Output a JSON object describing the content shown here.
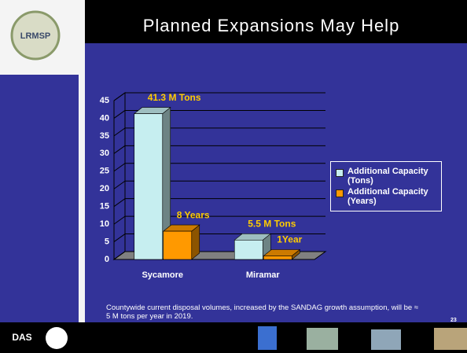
{
  "chart_data": {
    "type": "bar3d",
    "title": "Planned Expansions May Help",
    "categories": [
      "Sycamore",
      "Miramar"
    ],
    "series": [
      {
        "name": "Additional Capacity (Tons)",
        "color": "#c6eef0",
        "values": [
          41.3,
          5.5
        ],
        "value_labels": [
          "41.3 M Tons",
          "5.5 M Tons"
        ]
      },
      {
        "name": "Additional Capacity (Years)",
        "color": "#ff9900",
        "values": [
          8,
          1
        ],
        "value_labels": [
          "8 Years",
          "1Year"
        ]
      }
    ],
    "ylim": [
      0,
      45
    ],
    "yticks": [
      0,
      5,
      10,
      15,
      20,
      25,
      30,
      35,
      40,
      45
    ],
    "grid": true
  },
  "slide": {
    "logo_text": "LRMSP",
    "footer_logo_text": "DAS",
    "footnote": "Countywide current disposal volumes, increased by the SANDAG growth assumption, will be ≈ 5 M tons per year in 2019.",
    "page_number": "23"
  }
}
